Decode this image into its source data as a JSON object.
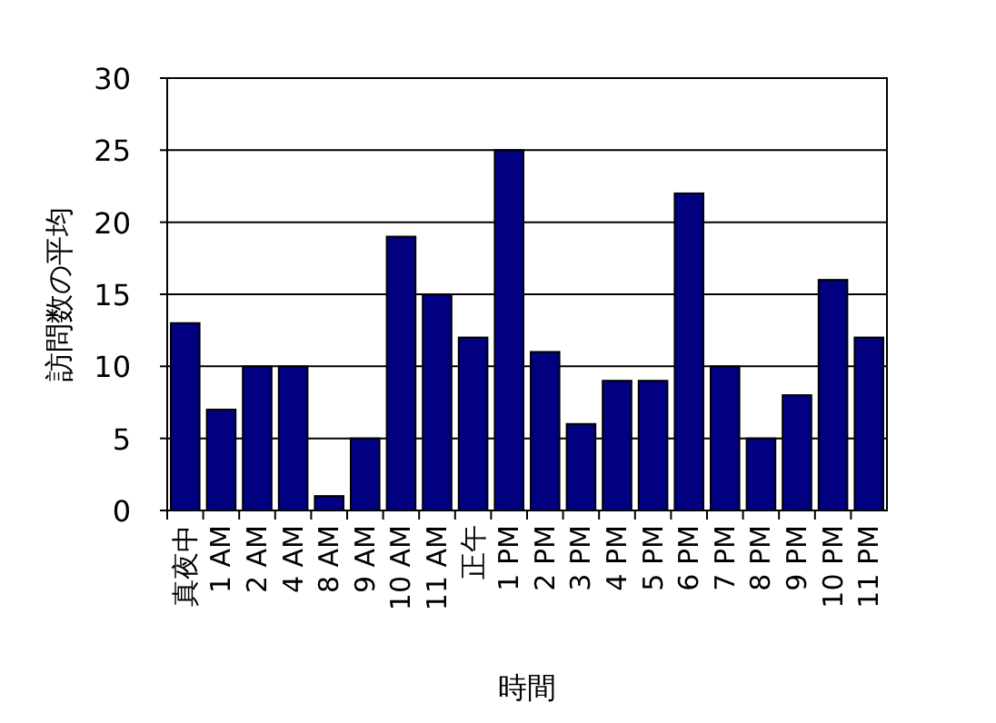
{
  "chart_data": {
    "type": "bar",
    "xlabel": "時間",
    "ylabel": "訪問数の平均",
    "categories": [
      "真夜中",
      "1 AM",
      "2 AM",
      "4 AM",
      "8 AM",
      "9 AM",
      "10 AM",
      "11 AM",
      "正午",
      "1 PM",
      "2 PM",
      "3 PM",
      "4 PM",
      "5 PM",
      "6 PM",
      "7 PM",
      "8 PM",
      "9 PM",
      "10 PM",
      "11 PM"
    ],
    "values": [
      13,
      7,
      10,
      10,
      1,
      5,
      19,
      15,
      12,
      25,
      11,
      6,
      9,
      9,
      22,
      10,
      5,
      8,
      16,
      12
    ],
    "color": "#000080",
    "ylim": [
      0,
      30
    ],
    "yticks": [
      0,
      5,
      10,
      15,
      20,
      25,
      30
    ],
    "grid": "y"
  }
}
